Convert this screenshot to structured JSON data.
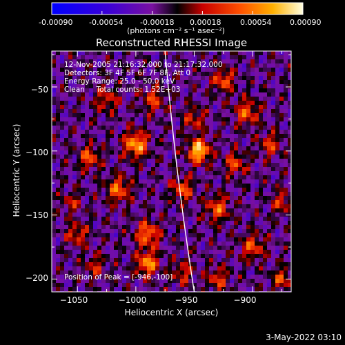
{
  "chart_data": {
    "type": "heatmap",
    "title": "Reconstructed RHESSI Image",
    "colorbar": {
      "ticks": [
        "-0.00090",
        "-0.00054",
        "-0.00018",
        "0.00018",
        "0.00054",
        "0.00090"
      ],
      "range": [
        -0.0009,
        0.0009
      ],
      "unit_label": "(photons cm⁻² s⁻¹ asec⁻²)"
    },
    "xlabel": "Heliocentric X (arcsec)",
    "ylabel": "Heliocentric Y (arcsec)",
    "xlim": [
      -1072,
      -867
    ],
    "ylim": [
      -210,
      -22
    ],
    "xticks": [
      {
        "value": -1050,
        "label": "−1050"
      },
      {
        "value": -1000,
        "label": "−1000"
      },
      {
        "value": -950,
        "label": "−950"
      },
      {
        "value": -900,
        "label": "−900"
      }
    ],
    "yticks": [
      {
        "value": -50,
        "label": "−50"
      },
      {
        "value": -100,
        "label": "−100"
      },
      {
        "value": -150,
        "label": "−150"
      },
      {
        "value": -200,
        "label": "−200"
      }
    ],
    "annotations": [
      "12-Nov-2005 21:16:32.000 to 21:17:32.000",
      "Detectors: 3F 4F 5F 6F 7F 8F, Att 0",
      "Energy Range: 25.0 - 50.0 keV",
      "Clean     Total counts: 1.52E+03"
    ],
    "peak_label": "Position of Peak = [-946,-100]",
    "peak": [
      -946,
      -100
    ],
    "limb_arc": {
      "x_top": -975,
      "y_top": -22,
      "x_bottom": -950,
      "y_bottom": -210
    },
    "grid": false
  },
  "footer": {
    "date": "3-May-2022 03:10"
  }
}
